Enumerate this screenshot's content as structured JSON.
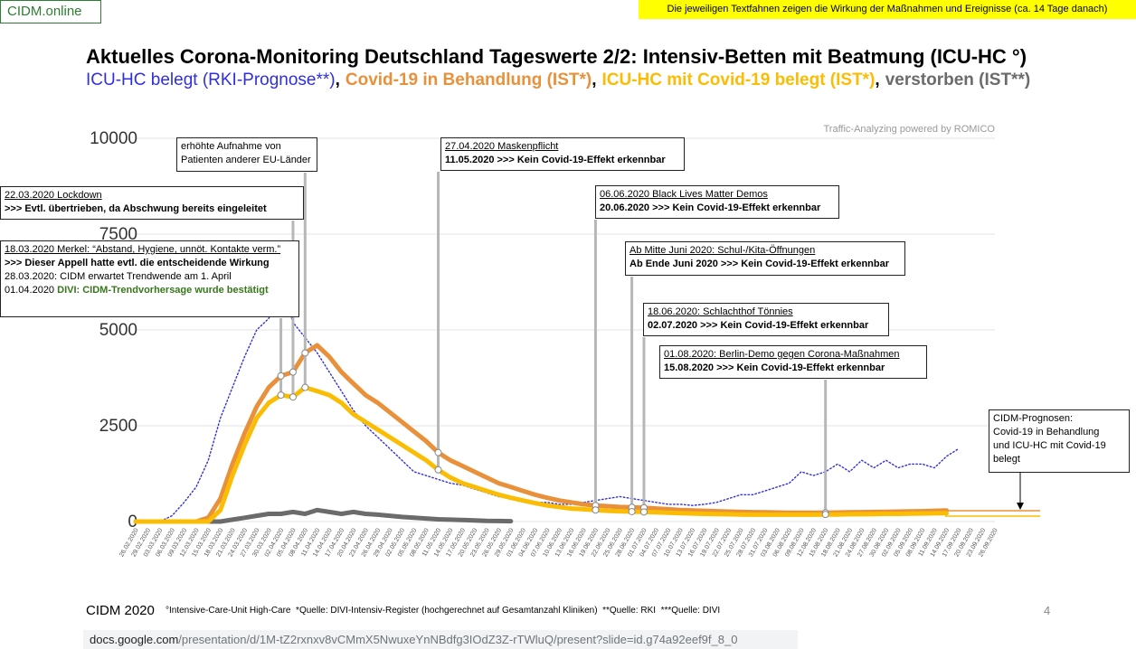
{
  "header": {
    "logo": "CIDM.online",
    "banner": "Die jeweiligen Textfahnen zeigen die Wirkung der Maßnahmen und Ereignisse (ca. 14 Tage danach)"
  },
  "chart_data": {
    "type": "line",
    "title": "Aktuelles Corona-Monitoring Deutschland Tageswerte 2/2: Intensiv-Betten mit Beatmung (ICU-HC °)",
    "legend_separator": ",",
    "watermark": "Traffic-Analyzing powered by ROMICO",
    "categories": [
      "26.02.2020",
      "29.02.2020",
      "03.03.2020",
      "06.03.2020",
      "09.03.2020",
      "12.03.2020",
      "15.03.2020",
      "18.03.2020",
      "21.03.2020",
      "24.03.2020",
      "27.03.2020",
      "30.03.2020",
      "02.04.2020",
      "05.04.2020",
      "08.04.2020",
      "11.04.2020",
      "14.04.2020",
      "17.04.2020",
      "20.04.2020",
      "23.04.2020",
      "26.04.2020",
      "29.04.2020",
      "02.05.2020",
      "05.05.2020",
      "08.05.2020",
      "11.05.2020",
      "14.05.2020",
      "17.05.2020",
      "20.05.2020",
      "23.05.2020",
      "26.05.2020",
      "29.05.2020",
      "01.06.2020",
      "04.06.2020",
      "07.06.2020",
      "10.06.2020",
      "13.06.2020",
      "16.06.2020",
      "19.06.2020",
      "22.06.2020",
      "25.06.2020",
      "28.06.2020",
      "01.07.2020",
      "04.07.2020",
      "07.07.2020",
      "10.07.2020",
      "13.07.2020",
      "16.07.2020",
      "19.07.2020",
      "22.07.2020",
      "25.07.2020",
      "28.07.2020",
      "31.07.2020",
      "03.08.2020",
      "06.08.2020",
      "09.08.2020",
      "12.08.2020",
      "15.08.2020",
      "18.08.2020",
      "21.08.2020",
      "24.08.2020",
      "27.08.2020",
      "30.08.2020",
      "02.09.2020",
      "05.09.2020",
      "08.09.2020",
      "11.09.2020",
      "14.09.2020",
      "17.09.2020",
      "20.09.2020",
      "23.09.2020",
      "26.09.2020"
    ],
    "series": [
      {
        "name": "ICU-HC belegt (RKI-Prognose**)",
        "color": "#2f2fe0",
        "dash": true,
        "values": [
          0,
          0,
          0,
          150,
          500,
          900,
          1600,
          2700,
          3500,
          4300,
          5000,
          5300,
          6200,
          5200,
          4800,
          4400,
          3900,
          3400,
          2900,
          2500,
          2200,
          1900,
          1600,
          1300,
          1200,
          1100,
          1000,
          950,
          850,
          750,
          650,
          600,
          550,
          500,
          500,
          450,
          450,
          500,
          550,
          600,
          650,
          600,
          550,
          500,
          450,
          450,
          420,
          450,
          500,
          600,
          700,
          700,
          800,
          900,
          1000,
          1300,
          1200,
          1300,
          1500,
          1300,
          1600,
          1400,
          1600,
          1400,
          1500,
          1500,
          1400,
          1700,
          1900,
          null,
          null,
          null
        ]
      },
      {
        "name": "Covid-19 in Behandlung (IST*)",
        "color": "#e8913a",
        "values": [
          0,
          0,
          0,
          0,
          0,
          0,
          100,
          600,
          1500,
          2300,
          3000,
          3500,
          3800,
          3900,
          4400,
          4600,
          4300,
          3900,
          3600,
          3300,
          3100,
          2850,
          2600,
          2350,
          2100,
          1800,
          1600,
          1450,
          1300,
          1150,
          1000,
          900,
          800,
          700,
          620,
          550,
          500,
          450,
          420,
          400,
          380,
          370,
          360,
          340,
          320,
          300,
          290,
          280,
          270,
          260,
          250,
          245,
          240,
          235,
          230,
          230,
          230,
          230,
          235,
          240,
          245,
          250,
          255,
          260,
          265,
          270,
          280,
          290,
          null,
          null,
          null,
          null
        ]
      },
      {
        "name": "ICU-HC mit Covid-19 belegt (IST*)",
        "color": "#fbbc04",
        "values": [
          0,
          0,
          0,
          0,
          0,
          0,
          0,
          300,
          1200,
          2000,
          2700,
          3100,
          3300,
          3250,
          3500,
          3400,
          3300,
          3100,
          2800,
          2600,
          2400,
          2200,
          2000,
          1800,
          1600,
          1350,
          1150,
          1000,
          900,
          800,
          700,
          620,
          550,
          480,
          420,
          380,
          340,
          320,
          300,
          280,
          270,
          260,
          250,
          240,
          230,
          220,
          210,
          200,
          195,
          190,
          185,
          180,
          180,
          180,
          180,
          180,
          180,
          185,
          185,
          190,
          190,
          195,
          200,
          200,
          205,
          210,
          215,
          220,
          null,
          null,
          null,
          null
        ]
      },
      {
        "name": "verstorben (IST**)",
        "color": "#6b6b6b",
        "values": [
          0,
          0,
          0,
          0,
          0,
          0,
          0,
          0,
          50,
          100,
          150,
          200,
          200,
          250,
          200,
          300,
          250,
          200,
          250,
          200,
          180,
          150,
          120,
          100,
          80,
          60,
          50,
          40,
          30,
          20,
          15,
          10,
          null,
          null,
          null,
          null,
          null,
          null,
          null,
          null,
          null,
          null,
          null,
          null,
          null,
          null,
          null,
          null,
          null,
          null,
          null,
          null,
          null,
          null,
          null,
          null,
          null,
          null,
          null,
          null,
          null,
          null,
          null,
          null,
          null,
          null,
          null,
          null,
          null,
          null,
          null,
          null
        ]
      }
    ],
    "ylim": [
      0,
      10000
    ],
    "yticks": [
      0,
      2500,
      5000,
      7500,
      10000
    ],
    "grid": true,
    "annotations": [
      {
        "lines": [
          "erhöhte Aufnahme von",
          "Patienten anderer EU-Länder"
        ]
      },
      {
        "lines": [
          "22.03.2020 Lockdown",
          ">>> Evtl. übertrieben, da Abschwung bereits eingeleitet"
        ]
      },
      {
        "lines": [
          "18.03.2020 Merkel: “Abstand, Hygiene, unnöt. Kontakte verm.”",
          ">>> Dieser Appell hatte evtl. die entscheidende Wirkung",
          "28.03.2020: CIDM erwartet Trendwende am 1. April",
          "01.04.2020",
          "DIVI: CIDM-Trendvorhersage wurde bestätigt"
        ]
      },
      {
        "lines": [
          "27.04.2020 Maskenpflicht",
          "11.05.2020 >>> Kein Covid-19-Effekt erkennbar"
        ]
      },
      {
        "lines": [
          "06.06.2020 Black Lives Matter Demos",
          "20.06.2020 >>> Kein Covid-19-Effekt erkennbar"
        ]
      },
      {
        "lines": [
          "Ab Mitte Juni 2020: Schul-/Kita-Öffnungen",
          "Ab Ende Juni 2020 >>> Kein Covid-19-Effekt erkennbar"
        ]
      },
      {
        "lines": [
          "18.06.2020: Schlachthof Tönnies",
          "02.07.2020 >>> Kein Covid-19-Effekt erkennbar"
        ]
      },
      {
        "lines": [
          "01.08.2020: Berlin-Demo gegen Corona-Maßnahmen",
          "15.08.2020 >>> Kein Covid-19-Effekt erkennbar"
        ]
      },
      {
        "lines": [
          "CIDM-Prognosen:",
          "Covid-19 in Behandlung",
          "und ICU-HC mit Covid-19",
          "belegt"
        ]
      }
    ]
  },
  "footer": {
    "brand": "CIDM 2020",
    "notes": "°Intensive-Care-Unit High-Care  *Quelle: DIVI-Intensiv-Register (hochgerechnet auf Gesamtanzahl Kliniken)  **Quelle: RKI  ***Quelle: DIVI",
    "page": "4",
    "url_host": "docs.google.com",
    "url_path": "/presentation/d/1M-tZ2rxnxv8vCMmX5NwuxeYnNBdfg3IOdZ3Z-rTWluQ/present?slide=id.g74a92eef9f_8_0"
  }
}
